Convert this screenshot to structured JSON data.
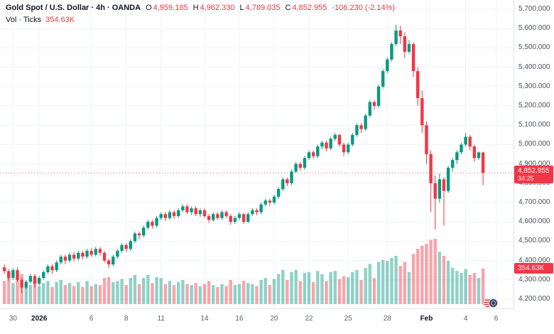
{
  "legend": {
    "title": "Gold Spot / U.S. Dollar · 4h · OANDA",
    "ohlc": [
      {
        "k": "O",
        "v": "4,959.185"
      },
      {
        "k": "H",
        "v": "4,962.330"
      },
      {
        "k": "L",
        "v": "4,789.035"
      },
      {
        "k": "C",
        "v": "4,852.955"
      }
    ],
    "change": "-106.230 (-2.14%)",
    "vol_label": "Vol · Ticks",
    "vol_value": "354.63K"
  },
  "badges": {
    "last_price": "4,852.955",
    "countdown": "34:25",
    "volume": "354.63K"
  },
  "chart_data": {
    "type": "candlestick",
    "title": "Gold Spot / U.S. Dollar",
    "interval": "4h",
    "source": "OANDA",
    "last_price": 4852.955,
    "last_volume_display": "354.63K",
    "colors": {
      "up": "#089981",
      "down": "#f23645",
      "vol_up": "rgba(8,153,129,0.45)",
      "vol_down": "rgba(242,54,69,0.45)",
      "grid": "#f0f3fa"
    },
    "y_axis": {
      "min": 4200,
      "max": 5700,
      "step": 100,
      "labels": [
        5700,
        5600,
        5500,
        5400,
        5300,
        5200,
        5100,
        5000,
        4900,
        4800,
        4700,
        4600,
        4500,
        4400,
        4300,
        4200
      ]
    },
    "x_labels": [
      {
        "t": "30",
        "i": 2
      },
      {
        "t": "2026",
        "i": 8,
        "major": true
      },
      {
        "t": "6",
        "i": 20
      },
      {
        "t": "8",
        "i": 28
      },
      {
        "t": "11",
        "i": 36
      },
      {
        "t": "14",
        "i": 46
      },
      {
        "t": "16",
        "i": 54
      },
      {
        "t": "20",
        "i": 62
      },
      {
        "t": "22",
        "i": 70
      },
      {
        "t": "25",
        "i": 79
      },
      {
        "t": "28",
        "i": 88
      },
      {
        "t": "Feb",
        "i": 97,
        "major": true
      },
      {
        "t": "4",
        "i": 106
      },
      {
        "t": "6",
        "i": 113
      }
    ],
    "candle_format": [
      "open",
      "high",
      "low",
      "close",
      "volume_K"
    ],
    "candles": [
      [
        4365,
        4380,
        4330,
        4345,
        230
      ],
      [
        4345,
        4355,
        4295,
        4310,
        260
      ],
      [
        4310,
        4360,
        4300,
        4350,
        210
      ],
      [
        4350,
        4365,
        4290,
        4300,
        280
      ],
      [
        4300,
        4310,
        4230,
        4260,
        300
      ],
      [
        4260,
        4300,
        4250,
        4290,
        220
      ],
      [
        4290,
        4330,
        4280,
        4320,
        190
      ],
      [
        4320,
        4330,
        4260,
        4280,
        240
      ],
      [
        4280,
        4320,
        4270,
        4310,
        180
      ],
      [
        4310,
        4350,
        4300,
        4340,
        210
      ],
      [
        4340,
        4380,
        4330,
        4370,
        230
      ],
      [
        4370,
        4380,
        4330,
        4350,
        170
      ],
      [
        4350,
        4400,
        4340,
        4390,
        220
      ],
      [
        4390,
        4430,
        4380,
        4420,
        240
      ],
      [
        4420,
        4430,
        4380,
        4400,
        190
      ],
      [
        4400,
        4440,
        4390,
        4430,
        210
      ],
      [
        4430,
        4445,
        4395,
        4410,
        180
      ],
      [
        4410,
        4450,
        4400,
        4440,
        220
      ],
      [
        4440,
        4450,
        4405,
        4420,
        170
      ],
      [
        4420,
        4460,
        4410,
        4450,
        230
      ],
      [
        4450,
        4465,
        4420,
        4430,
        180
      ],
      [
        4430,
        4470,
        4420,
        4460,
        200
      ],
      [
        4460,
        4470,
        4425,
        4440,
        190
      ],
      [
        4440,
        4450,
        4390,
        4400,
        260
      ],
      [
        4400,
        4410,
        4360,
        4380,
        270
      ],
      [
        4380,
        4430,
        4370,
        4420,
        220
      ],
      [
        4420,
        4460,
        4410,
        4450,
        230
      ],
      [
        4450,
        4490,
        4440,
        4480,
        250
      ],
      [
        4480,
        4490,
        4445,
        4460,
        190
      ],
      [
        4460,
        4510,
        4450,
        4500,
        260
      ],
      [
        4500,
        4550,
        4490,
        4540,
        290
      ],
      [
        4540,
        4550,
        4510,
        4530,
        200
      ],
      [
        4530,
        4580,
        4520,
        4570,
        260
      ],
      [
        4570,
        4610,
        4560,
        4600,
        290
      ],
      [
        4600,
        4610,
        4565,
        4580,
        210
      ],
      [
        4580,
        4630,
        4570,
        4620,
        270
      ],
      [
        4620,
        4650,
        4610,
        4640,
        260
      ],
      [
        4640,
        4650,
        4605,
        4620,
        200
      ],
      [
        4620,
        4660,
        4610,
        4650,
        230
      ],
      [
        4650,
        4660,
        4615,
        4630,
        190
      ],
      [
        4630,
        4670,
        4620,
        4660,
        220
      ],
      [
        4660,
        4690,
        4650,
        4680,
        240
      ],
      [
        4680,
        4690,
        4640,
        4650,
        200
      ],
      [
        4650,
        4680,
        4635,
        4670,
        190
      ],
      [
        4670,
        4680,
        4630,
        4640,
        210
      ],
      [
        4640,
        4670,
        4625,
        4660,
        180
      ],
      [
        4660,
        4670,
        4620,
        4630,
        200
      ],
      [
        4630,
        4640,
        4595,
        4610,
        230
      ],
      [
        4610,
        4650,
        4600,
        4640,
        190
      ],
      [
        4640,
        4650,
        4610,
        4620,
        170
      ],
      [
        4620,
        4660,
        4610,
        4650,
        200
      ],
      [
        4650,
        4660,
        4620,
        4630,
        180
      ],
      [
        4630,
        4640,
        4585,
        4600,
        240
      ],
      [
        4600,
        4630,
        4590,
        4620,
        190
      ],
      [
        4620,
        4650,
        4610,
        4640,
        200
      ],
      [
        4640,
        4645,
        4590,
        4600,
        230
      ],
      [
        4600,
        4650,
        4595,
        4640,
        210
      ],
      [
        4640,
        4670,
        4630,
        4660,
        200
      ],
      [
        4660,
        4670,
        4635,
        4650,
        180
      ],
      [
        4650,
        4700,
        4640,
        4690,
        240
      ],
      [
        4690,
        4720,
        4680,
        4710,
        260
      ],
      [
        4710,
        4720,
        4685,
        4700,
        190
      ],
      [
        4700,
        4740,
        4690,
        4730,
        250
      ],
      [
        4730,
        4780,
        4720,
        4770,
        300
      ],
      [
        4770,
        4830,
        4760,
        4820,
        340
      ],
      [
        4820,
        4830,
        4785,
        4800,
        240
      ],
      [
        4800,
        4870,
        4790,
        4860,
        320
      ],
      [
        4860,
        4910,
        4850,
        4900,
        340
      ],
      [
        4900,
        4910,
        4865,
        4880,
        230
      ],
      [
        4880,
        4940,
        4870,
        4930,
        310
      ],
      [
        4930,
        4970,
        4920,
        4960,
        320
      ],
      [
        4960,
        4970,
        4925,
        4940,
        220
      ],
      [
        4940,
        5000,
        4930,
        4990,
        330
      ],
      [
        4990,
        5020,
        4975,
        5010,
        300
      ],
      [
        5010,
        5020,
        4965,
        4980,
        230
      ],
      [
        4980,
        5040,
        4970,
        5030,
        320
      ],
      [
        5030,
        5060,
        5020,
        5050,
        330
      ],
      [
        5050,
        5055,
        4990,
        5000,
        250
      ],
      [
        5000,
        5010,
        4940,
        4960,
        280
      ],
      [
        4960,
        5010,
        4950,
        5000,
        270
      ],
      [
        5000,
        5060,
        4990,
        5050,
        320
      ],
      [
        5050,
        5110,
        5040,
        5100,
        340
      ],
      [
        5100,
        5110,
        5060,
        5080,
        240
      ],
      [
        5080,
        5160,
        5070,
        5150,
        360
      ],
      [
        5150,
        5230,
        5140,
        5220,
        400
      ],
      [
        5220,
        5230,
        5180,
        5200,
        260
      ],
      [
        5200,
        5310,
        5190,
        5300,
        420
      ],
      [
        5300,
        5390,
        5290,
        5380,
        440
      ],
      [
        5380,
        5450,
        5370,
        5440,
        430
      ],
      [
        5440,
        5530,
        5430,
        5520,
        460
      ],
      [
        5520,
        5620,
        5510,
        5590,
        480
      ],
      [
        5590,
        5615,
        5520,
        5560,
        380
      ],
      [
        5560,
        5580,
        5450,
        5480,
        420
      ],
      [
        5480,
        5540,
        5470,
        5520,
        320
      ],
      [
        5520,
        5530,
        5350,
        5380,
        500
      ],
      [
        5380,
        5400,
        5200,
        5240,
        550
      ],
      [
        5240,
        5280,
        5060,
        5100,
        580
      ],
      [
        5100,
        5120,
        4900,
        4950,
        600
      ],
      [
        4950,
        4970,
        4650,
        4800,
        640
      ],
      [
        4800,
        4840,
        4560,
        4720,
        650
      ],
      [
        4720,
        4850,
        4700,
        4820,
        520
      ],
      [
        4820,
        4830,
        4580,
        4760,
        480
      ],
      [
        4760,
        4890,
        4750,
        4880,
        430
      ],
      [
        4880,
        4930,
        4860,
        4920,
        360
      ],
      [
        4920,
        4970,
        4900,
        4960,
        330
      ],
      [
        4960,
        5010,
        4950,
        5000,
        310
      ],
      [
        5000,
        5060,
        4990,
        5040,
        350
      ],
      [
        5040,
        5050,
        4970,
        4990,
        290
      ],
      [
        4990,
        5000,
        4910,
        4930,
        310
      ],
      [
        4930,
        4965,
        4920,
        4959.185,
        260
      ],
      [
        4959.185,
        4962.33,
        4789.035,
        4852.955,
        354.63
      ]
    ]
  }
}
